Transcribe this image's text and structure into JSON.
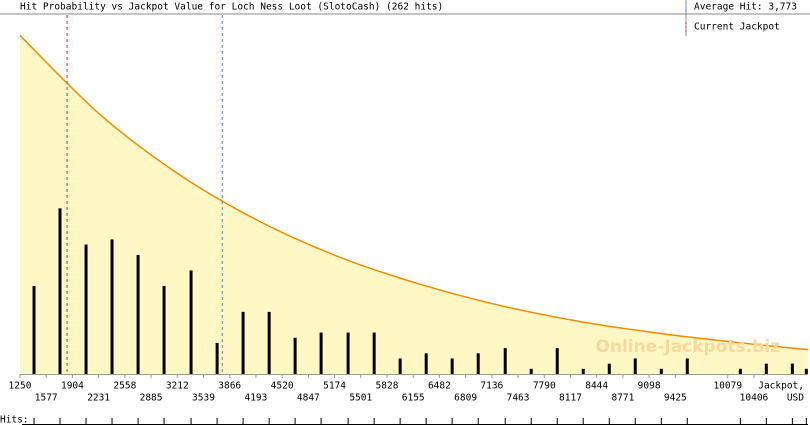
{
  "chart_data": {
    "type": "bar",
    "title": "Hit Probability vs Jackpot Value for Loch Ness Loot (SlotoCash) (262 hits)",
    "xlabel": [
      "Jackpot,",
      "USD"
    ],
    "watermark": "Online-Jackpots.biz",
    "rug_label": "Hits:",
    "color": "#000000",
    "x": [
      1425,
      1749,
      2074,
      2398,
      2723,
      3047,
      3384,
      3709,
      4033,
      4358,
      4682,
      5006,
      5343,
      5668,
      5992,
      6317,
      6641,
      6966,
      7303,
      7627,
      7952,
      8276,
      8601,
      8925,
      9250,
      9574,
      10236,
      10560,
      10885,
      11059
    ],
    "values": [
      17,
      32,
      25,
      26,
      23,
      17,
      20,
      6,
      12,
      12,
      7,
      8,
      8,
      8,
      3,
      4,
      3,
      4,
      5,
      1,
      5,
      1,
      2,
      3,
      1,
      3,
      1,
      2,
      2,
      1
    ],
    "curve": {
      "color": "#f08c00",
      "fill": "#fff7c4",
      "x": [
        1250,
        2250,
        3250,
        4250,
        5250,
        6250,
        7250,
        8250,
        9250,
        10250,
        11080
      ],
      "values": [
        65.4,
        50.1,
        38.4,
        29.4,
        22.5,
        17.3,
        13.2,
        10.1,
        7.8,
        6.0,
        4.7
      ]
    },
    "reference_lines": [
      {
        "value": 3773,
        "label": "Average Hit: 3,773",
        "color": "#3a8ee0"
      },
      {
        "value": 1837,
        "label": "Current Jackpot",
        "color": "#b03a4a"
      }
    ],
    "xlim": [
      1250,
      11080
    ],
    "ylim": [
      0,
      68
    ],
    "xticks": [
      1250,
      1577,
      1904,
      2231,
      2558,
      2885,
      3212,
      3539,
      3866,
      4193,
      4520,
      4847,
      5174,
      5501,
      5828,
      6155,
      6482,
      6809,
      7136,
      7463,
      7790,
      8117,
      8444,
      8771,
      9098,
      9425,
      10079,
      10406
    ]
  }
}
